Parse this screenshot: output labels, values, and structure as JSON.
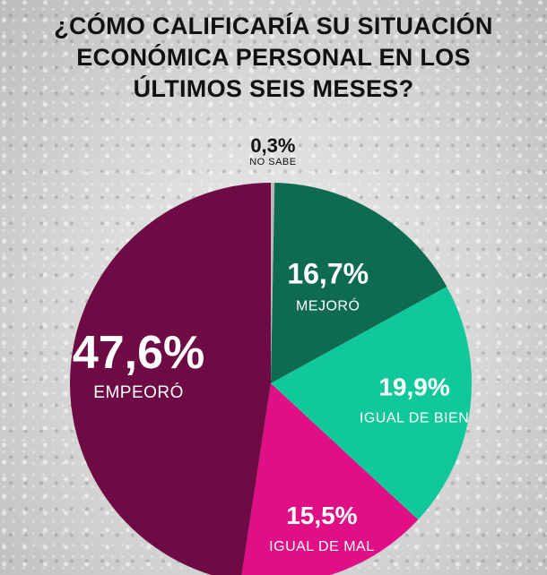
{
  "title_lines": [
    "¿CÓMO CALIFICARÍA SU SITUACIÓN",
    "ECONÓMICA PERSONAL EN LOS",
    "ÚLTIMOS SEIS MESES?"
  ],
  "chart_data": {
    "type": "pie",
    "title": "¿CÓMO CALIFICARÍA SU SITUACIÓN ECONÓMICA PERSONAL EN LOS ÚLTIMOS SEIS MESES?",
    "start": "top",
    "direction": "clockwise",
    "slices": [
      {
        "label": "NO SABE",
        "value": 0.3,
        "value_label": "0,3%",
        "color": "#b9b9b9"
      },
      {
        "label": "MEJORÓ",
        "value": 16.7,
        "value_label": "16,7%",
        "color": "#0e6b51"
      },
      {
        "label": "IGUAL DE BIEN",
        "value": 19.9,
        "value_label": "19,9%",
        "color": "#11c89a"
      },
      {
        "label": "IGUAL DE MAL",
        "value": 15.5,
        "value_label": "15,5%",
        "color": "#e10f86"
      },
      {
        "label": "EMPEORÓ",
        "value": 47.6,
        "value_label": "47,6%",
        "color": "#6e0b44"
      }
    ]
  }
}
